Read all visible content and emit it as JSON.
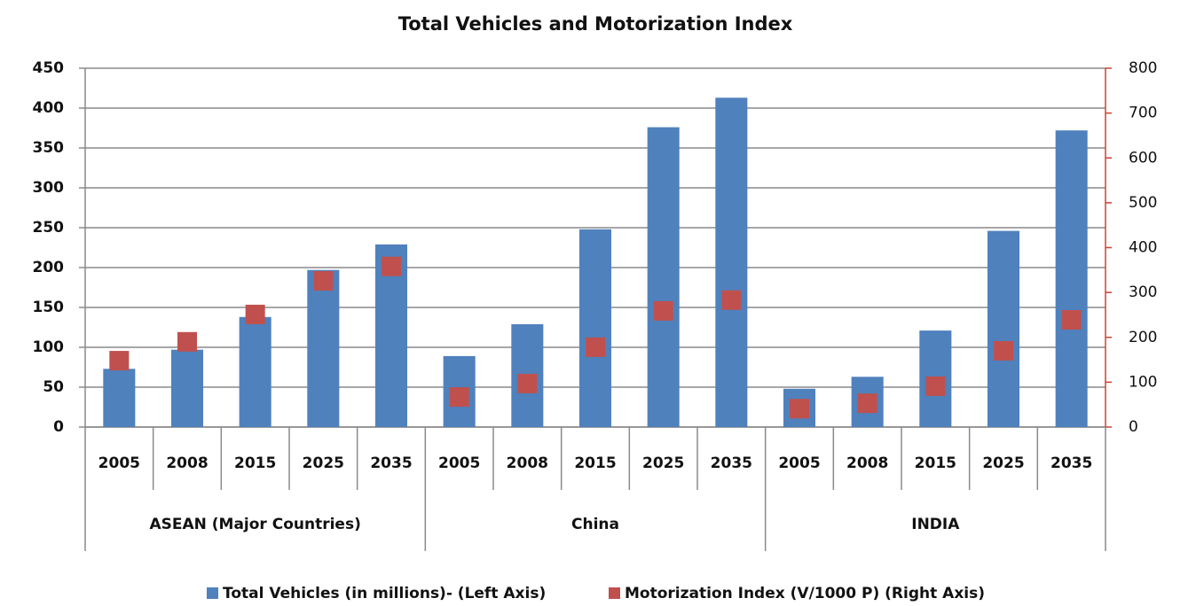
{
  "chart_data": {
    "type": "bar",
    "title": "Total Vehicles and Motorization Index",
    "categories": [
      "2005",
      "2008",
      "2015",
      "2025",
      "2035",
      "2005",
      "2008",
      "2015",
      "2025",
      "2035",
      "2005",
      "2008",
      "2015",
      "2025",
      "2035"
    ],
    "category_groups": [
      "ASEAN (Major Countries)",
      "China",
      "INDIA"
    ],
    "series": [
      {
        "name": "Total Vehicles (in millions)- (Left Axis)",
        "type": "bar",
        "color": "#4f81bd",
        "values": [
          73,
          97,
          138,
          197,
          229,
          89,
          129,
          248,
          376,
          413,
          48,
          63,
          121,
          246,
          372
        ]
      },
      {
        "name": "Motorization Index (V/1000 P) (Right Axis)",
        "type": "scatter",
        "axis": "y2",
        "color": "#c0504d",
        "values": [
          148,
          190,
          251,
          326,
          358,
          67,
          97,
          178,
          259,
          283,
          41,
          53,
          91,
          170,
          239
        ]
      }
    ],
    "ylim": [
      0,
      450
    ],
    "yticks": [
      0,
      50,
      100,
      150,
      200,
      250,
      300,
      350,
      400,
      450
    ],
    "y2lim": [
      0,
      800
    ],
    "y2ticks": [
      0,
      100,
      200,
      300,
      400,
      500,
      600,
      700,
      800
    ],
    "y2_axis_color": "#d0402d",
    "grid": true,
    "legend": "bottom"
  }
}
